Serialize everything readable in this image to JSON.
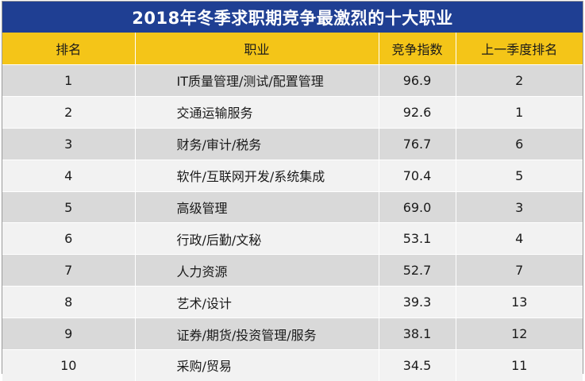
{
  "title": "2018年冬季求职期竞争最激烈的十大职业",
  "headers": {
    "rank": "排名",
    "job": "职业",
    "index": "竞争指数",
    "prev_rank": "上一季度排名"
  },
  "rows": [
    {
      "rank": "1",
      "job": "IT质量管理/测试/配置管理",
      "index": "96.9",
      "prev_rank": "2"
    },
    {
      "rank": "2",
      "job": "交通运输服务",
      "index": "92.6",
      "prev_rank": "1"
    },
    {
      "rank": "3",
      "job": "财务/审计/税务",
      "index": "76.7",
      "prev_rank": "6"
    },
    {
      "rank": "4",
      "job": "软件/互联网开发/系统集成",
      "index": "70.4",
      "prev_rank": "5"
    },
    {
      "rank": "5",
      "job": "高级管理",
      "index": "69.0",
      "prev_rank": "3"
    },
    {
      "rank": "6",
      "job": "行政/后勤/文秘",
      "index": "53.1",
      "prev_rank": "4"
    },
    {
      "rank": "7",
      "job": "人力资源",
      "index": "52.7",
      "prev_rank": "7"
    },
    {
      "rank": "8",
      "job": "艺术/设计",
      "index": "39.3",
      "prev_rank": "13"
    },
    {
      "rank": "9",
      "job": "证券/期货/投资管理/服务",
      "index": "38.1",
      "prev_rank": "12"
    },
    {
      "rank": "10",
      "job": "采购/贸易",
      "index": "34.5",
      "prev_rank": "11"
    }
  ],
  "colors": {
    "title_bg": "#1f3f93",
    "header_bg": "#f4c518",
    "row_odd": "#d9d9d9",
    "row_even": "#f2f2f2"
  }
}
